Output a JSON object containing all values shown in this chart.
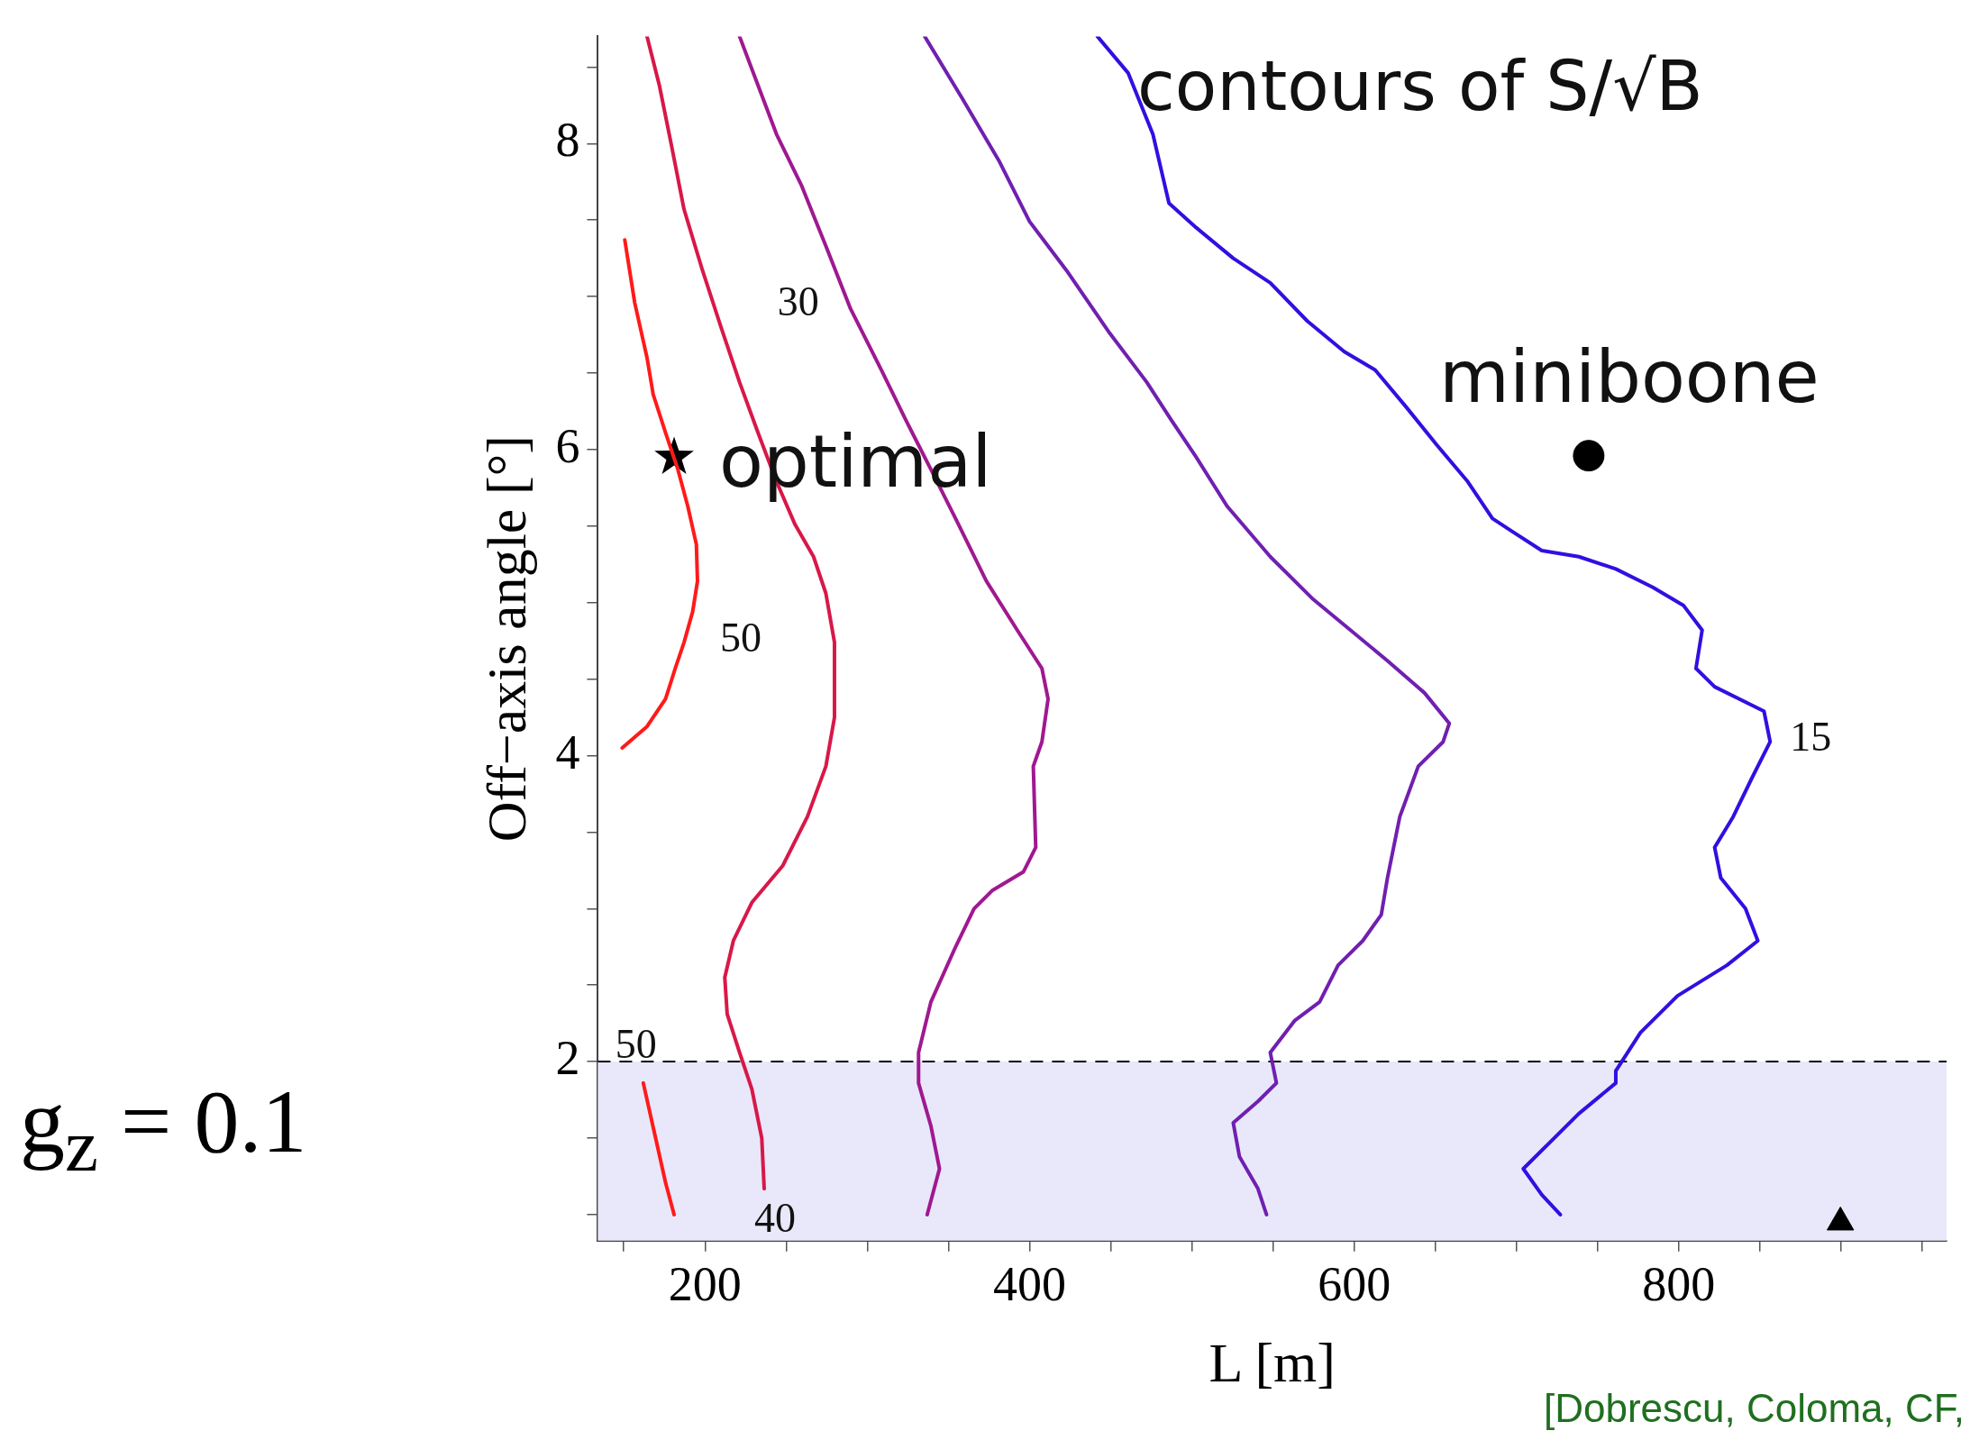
{
  "chart_data": {
    "type": "line",
    "xlabel": "L [m]",
    "ylabel": "Off−axis angle [°]",
    "xlim": [
      134,
      965
    ],
    "ylim": [
      0.83,
      8.7
    ],
    "xticks": [
      {
        "value": 150,
        "label": null
      },
      200,
      {
        "value": 250,
        "label": null
      },
      {
        "value": 300,
        "label": null
      },
      {
        "value": 350,
        "label": null
      },
      400,
      {
        "value": 450,
        "label": null
      },
      {
        "value": 500,
        "label": null
      },
      {
        "value": 550,
        "label": null
      },
      600,
      {
        "value": 650,
        "label": null
      },
      {
        "value": 700,
        "label": null
      },
      {
        "value": 750,
        "label": null
      },
      800,
      {
        "value": 850,
        "label": null
      },
      {
        "value": 900,
        "label": null
      },
      {
        "value": 950,
        "label": null
      }
    ],
    "yticks": [
      {
        "value": 1,
        "label": null
      },
      {
        "value": 1.5,
        "label": null
      },
      2,
      {
        "value": 2.5,
        "label": null
      },
      {
        "value": 3,
        "label": null
      },
      {
        "value": 3.5,
        "label": null
      },
      4,
      {
        "value": 4.5,
        "label": null
      },
      {
        "value": 5,
        "label": null
      },
      {
        "value": 5.5,
        "label": null
      },
      6,
      {
        "value": 6.5,
        "label": null
      },
      {
        "value": 7,
        "label": null
      },
      {
        "value": 7.5,
        "label": null
      },
      8,
      {
        "value": 8.5,
        "label": null
      }
    ],
    "grid": false,
    "legend": false,
    "series": [
      {
        "color": "#ff1a1a",
        "marker": "none",
        "x": [
          150.6,
          156.7,
          164.3,
          168.1,
          175.7,
          183.3,
          189.4,
          194.7,
          195.4,
          192.4,
          187.1,
          181.7,
          175.7,
          164.3,
          149.0
        ],
        "values": [
          7.37,
          6.96,
          6.6,
          6.36,
          6.11,
          5.87,
          5.63,
          5.38,
          5.14,
          4.94,
          4.74,
          4.57,
          4.37,
          4.19,
          4.05
        ]
      },
      {
        "color": "#ff1a1a",
        "marker": "none",
        "x": [
          162,
          169.6,
          175.7,
          181
        ],
        "values": [
          1.86,
          1.5,
          1.21,
          1.0
        ]
      },
      {
        "color": "#d81848",
        "marker": "none",
        "x": [
          164.3,
          171.9,
          179.5,
          187.1,
          198.5,
          209.9,
          221.3,
          232.7,
          244.1,
          255.5,
          266.9,
          274.5,
          279.8,
          279.8,
          274.5,
          263.1,
          247.9,
          228.9,
          217.5,
          212.2,
          213.7,
          221.3,
          228.9,
          235.0,
          236.5
        ],
        "values": [
          8.7,
          8.38,
          7.98,
          7.57,
          7.17,
          6.8,
          6.44,
          6.11,
          5.79,
          5.51,
          5.3,
          5.06,
          4.74,
          4.25,
          3.93,
          3.6,
          3.28,
          3.04,
          2.79,
          2.55,
          2.31,
          2.06,
          1.82,
          1.5,
          1.17
        ]
      },
      {
        "color": "#a01890",
        "marker": "none",
        "x": [
          221.3,
          232.7,
          244.1,
          259.3,
          274.5,
          289.7,
          308.7,
          323.9,
          339.2,
          354.4,
          373.4,
          392.4,
          407.6,
          411.4,
          407.6,
          402.3,
          403.8,
          396.2,
          377.2,
          365.8,
          354.4,
          339.2,
          331.6,
          331.6,
          339.2,
          344.5,
          336.9
        ],
        "values": [
          8.7,
          8.38,
          8.06,
          7.73,
          7.33,
          6.92,
          6.52,
          6.19,
          5.87,
          5.55,
          5.14,
          4.82,
          4.57,
          4.37,
          4.09,
          3.93,
          3.4,
          3.24,
          3.12,
          3.0,
          2.75,
          2.39,
          2.06,
          1.86,
          1.58,
          1.3,
          1.0
        ]
      },
      {
        "color": "#7020b0",
        "marker": "none",
        "x": [
          335.4,
          358.2,
          381.0,
          400.0,
          422.8,
          449.4,
          472.2,
          487.5,
          502.7,
          521.7,
          548.3,
          574.9,
          597.7,
          620.5,
          643.3,
          658.6,
          654.8,
          639.5,
          628.1,
          620.5,
          616.7,
          605.3,
          590.1,
          578.7,
          563.5,
          548.3,
          552.1,
          540.7,
          525.5,
          529.3,
          540.7,
          546.0
        ],
        "values": [
          8.7,
          8.3,
          7.89,
          7.49,
          7.17,
          6.76,
          6.44,
          6.19,
          5.95,
          5.63,
          5.3,
          5.02,
          4.82,
          4.62,
          4.41,
          4.21,
          4.09,
          3.93,
          3.6,
          3.2,
          2.96,
          2.79,
          2.63,
          2.39,
          2.27,
          2.06,
          1.86,
          1.74,
          1.6,
          1.38,
          1.17,
          1.0
        ]
      },
      {
        "color": "#3010e0",
        "marker": "none",
        "x": [
          441.8,
          460.8,
          476.0,
          485.9,
          502.7,
          525.5,
          548.3,
          571.1,
          593.9,
          612.9,
          631.9,
          650.9,
          670.0,
          685.2,
          696.6,
          715.6,
          738.4,
          761.2,
          784.0,
          803.0,
          814.4,
          810.6,
          822.1,
          852.5,
          856.3,
          844.9,
          833.5,
          822.1,
          825.9,
          841.1,
          848.7,
          829.7,
          799.2,
          776.4,
          761.2,
          761.2,
          738.4,
          719.4,
          704.2,
          715.6,
          727.0
        ],
        "values": [
          8.7,
          8.46,
          8.06,
          7.61,
          7.45,
          7.25,
          7.09,
          6.84,
          6.64,
          6.52,
          6.28,
          6.03,
          5.79,
          5.55,
          5.47,
          5.34,
          5.3,
          5.22,
          5.1,
          4.98,
          4.82,
          4.57,
          4.45,
          4.29,
          4.09,
          3.85,
          3.6,
          3.4,
          3.2,
          3.0,
          2.79,
          2.63,
          2.43,
          2.19,
          1.94,
          1.86,
          1.66,
          1.46,
          1.3,
          1.13,
          1.0
        ]
      },
      {
        "type": "scatter",
        "color": "#000000",
        "marker": "star",
        "x": [
          181
        ],
        "values": [
          5.95
        ]
      },
      {
        "type": "scatter",
        "color": "#000000",
        "marker": "circle",
        "x": [
          744.5
        ],
        "values": [
          5.96
        ]
      },
      {
        "type": "scatter",
        "color": "#000000",
        "marker": "triangle",
        "x": [
          899.6
        ],
        "values": [
          0.95
        ]
      }
    ],
    "ref_lines": [
      {
        "axis": "y",
        "value": 2,
        "color": "#000000",
        "line_style": "dashed"
      }
    ],
    "bands": [
      {
        "axis": "y",
        "from": 0.83,
        "to": 2,
        "color": "#e8e8fa"
      }
    ],
    "annotations": [
      "contours of S/√B",
      "g$_{z}$ = 0.1",
      "[Dobrescu, Coloma, CF,",
      {
        "text": "50",
        "x": 187.1,
        "y": 4.74
      },
      {
        "text": "50",
        "x": 162,
        "y": 1.86
      },
      {
        "text": "40",
        "x": 236.5,
        "y": 1.17
      },
      {
        "text": "30",
        "x": 289.7,
        "y": 6.92
      },
      {
        "text": "15",
        "x": 856.3,
        "y": 4.09
      },
      {
        "text": "optimal",
        "x": 181,
        "y": 5.95
      },
      {
        "text": "miniboone",
        "x": 744.5,
        "y": 5.96
      }
    ]
  }
}
